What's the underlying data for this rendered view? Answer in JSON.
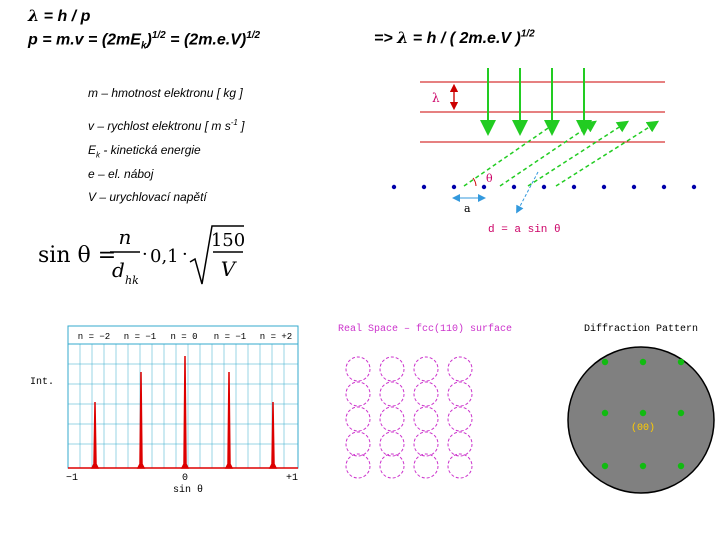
{
  "header": {
    "line1_lambda": "λ",
    "line1_rest": " = h / p",
    "line2_main": "p = m.v = (2mE",
    "line2_sub": "k",
    "line2_mid": ")",
    "line2_exp1": "1/2",
    "line2_eq": " = (2m.e.V)",
    "line2_exp2": "1/2",
    "right_arrow": "=> ",
    "right_lambda": "λ",
    "right_rest": " = h / ( 2m.e.V )",
    "right_exp": "1/2"
  },
  "definitions": [
    {
      "text": "m – hmotnost elektronu [ kg ]"
    },
    {
      "text_before": "v – rychlost elektronu [ m s",
      "sup": "-1",
      "text_after": " ]"
    },
    {
      "text_main": "E",
      "sub": "k",
      "text_after": " - kinetická energie"
    },
    {
      "text": "e – el. náboj"
    },
    {
      "text": "V – urychlovací napětí"
    }
  ],
  "equation": {
    "lhs": "sin θ =",
    "numerator": "n",
    "denominator": "d",
    "denominator_sub": "hk",
    "dot1": "·",
    "factor": "0,1",
    "dot2": "·",
    "root_num": "150",
    "root_den": "V"
  },
  "bragg_diagram": {
    "lambda_label": "λ",
    "theta_label": "θ",
    "a_label": "a",
    "formula": "d = a sin θ",
    "colors": {
      "wavefront": "#cc0000",
      "beam": "#22cc22",
      "atom": "#0000aa",
      "distance": "#3399dd",
      "label": "#cc0066"
    }
  },
  "intensity_chart": {
    "orders": [
      "n = −2",
      "n = −1",
      "n = 0",
      "n = −1",
      "n = +2"
    ],
    "ylabel": "Int.",
    "x_left": "−1",
    "x_mid": "0",
    "x_right": "+1",
    "xlabel": "sin θ",
    "colors": {
      "peak": "#dd0000",
      "grid": "#33aacc"
    }
  },
  "real_space": {
    "title": "Real Space – fcc(110) surface",
    "color": "#cc33cc"
  },
  "diffraction": {
    "title": "Diffraction Pattern",
    "center_label": "(00)",
    "colors": {
      "disc": "#808080",
      "spot": "#11bb11",
      "label": "#ffcc00"
    }
  }
}
